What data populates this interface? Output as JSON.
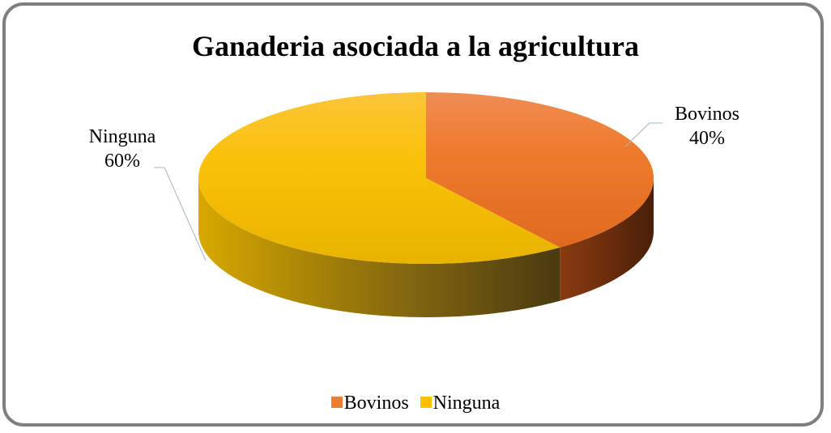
{
  "chart_data": {
    "type": "pie",
    "title": "Ganaderia asociada a la agricultura",
    "three_d": true,
    "legend_position": "bottom",
    "slices": [
      {
        "label": "Bovinos",
        "value": 40,
        "percent_label": "40%",
        "color": "#ED7D31"
      },
      {
        "label": "Ninguna",
        "value": 60,
        "percent_label": "60%",
        "color": "#FFC000"
      }
    ]
  }
}
